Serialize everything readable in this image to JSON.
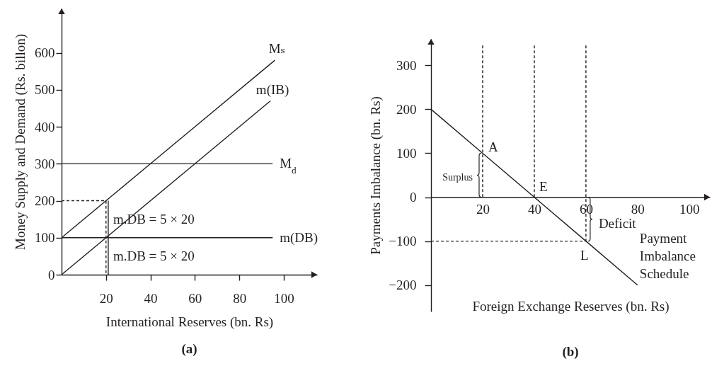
{
  "chart_data": [
    {
      "type": "line",
      "title": "(a)",
      "xlabel": "International Reserves (bn. Rs)",
      "ylabel": "Money Supply and Demand (Rs. billon)",
      "xlim": [
        0,
        115
      ],
      "ylim": [
        0,
        720
      ],
      "xticks": [
        20,
        40,
        60,
        80,
        100
      ],
      "yticks": [
        0,
        100,
        200,
        300,
        400,
        500,
        600
      ],
      "series": [
        {
          "name": "Mₛ",
          "color": "#231f20",
          "x": [
            0,
            96
          ],
          "values": [
            100,
            580
          ]
        },
        {
          "name": "m(IB)",
          "color": "#231f20",
          "x": [
            0,
            94
          ],
          "values": [
            0,
            470
          ]
        },
        {
          "name": "M$_{d}$",
          "color": "#231f20",
          "x": [
            0,
            95
          ],
          "values": [
            300,
            300
          ]
        },
        {
          "name": "m(DB)",
          "color": "#231f20",
          "x": [
            0,
            95
          ],
          "values": [
            100,
            100
          ]
        },
        {
          "color": "#231f20",
          "x": [
            0,
            20,
            20
          ],
          "values": [
            200,
            200,
            0
          ],
          "line_style": "dashed"
        },
        {
          "color": "#231f20",
          "x": [
            21,
            21
          ],
          "values": [
            0,
            200
          ]
        }
      ],
      "annotations": [
        {
          "text": "m.DB = 5 × 20",
          "x": 21,
          "y": 150
        },
        {
          "text": "m.DB = 5 × 20",
          "x": 21,
          "y": 50
        }
      ]
    },
    {
      "type": "line",
      "title": "(b)",
      "xlabel": "Foreign Exchange Reserves (bn. Rs)",
      "ylabel": "Payments Imbalance (bn. Rs)",
      "xlim": [
        0,
        108
      ],
      "ylim": [
        -260,
        360
      ],
      "xticks": [
        20,
        40,
        60,
        80,
        100
      ],
      "yticks": [
        -200,
        -100,
        0,
        100,
        200,
        300
      ],
      "series": [
        {
          "name": "Payment Imbalance Schedule",
          "color": "#231f20",
          "x": [
            0,
            20,
            40,
            60,
            80
          ],
          "values": [
            200,
            100,
            0,
            -100,
            -200
          ]
        },
        {
          "color": "#231f20",
          "x": [
            20,
            20
          ],
          "values": [
            345,
            0
          ],
          "line_style": "dashed"
        },
        {
          "color": "#231f20",
          "x": [
            40,
            40
          ],
          "values": [
            345,
            0
          ],
          "line_style": "dashed"
        },
        {
          "color": "#231f20",
          "x": [
            60,
            60
          ],
          "values": [
            345,
            -100
          ],
          "line_style": "dashed"
        },
        {
          "color": "#231f20",
          "x": [
            0,
            60
          ],
          "values": [
            -100,
            -100
          ],
          "line_style": "dashed"
        }
      ],
      "annotations": [
        {
          "text": "A",
          "x": 20,
          "y": 100
        },
        {
          "text": "E",
          "x": 40,
          "y": 0
        },
        {
          "text": "L",
          "x": 60,
          "y": -100
        },
        {
          "text": "Surplus",
          "x": 20,
          "y": 50
        },
        {
          "text": "Deficit",
          "x": 60,
          "y": -50
        }
      ]
    }
  ]
}
